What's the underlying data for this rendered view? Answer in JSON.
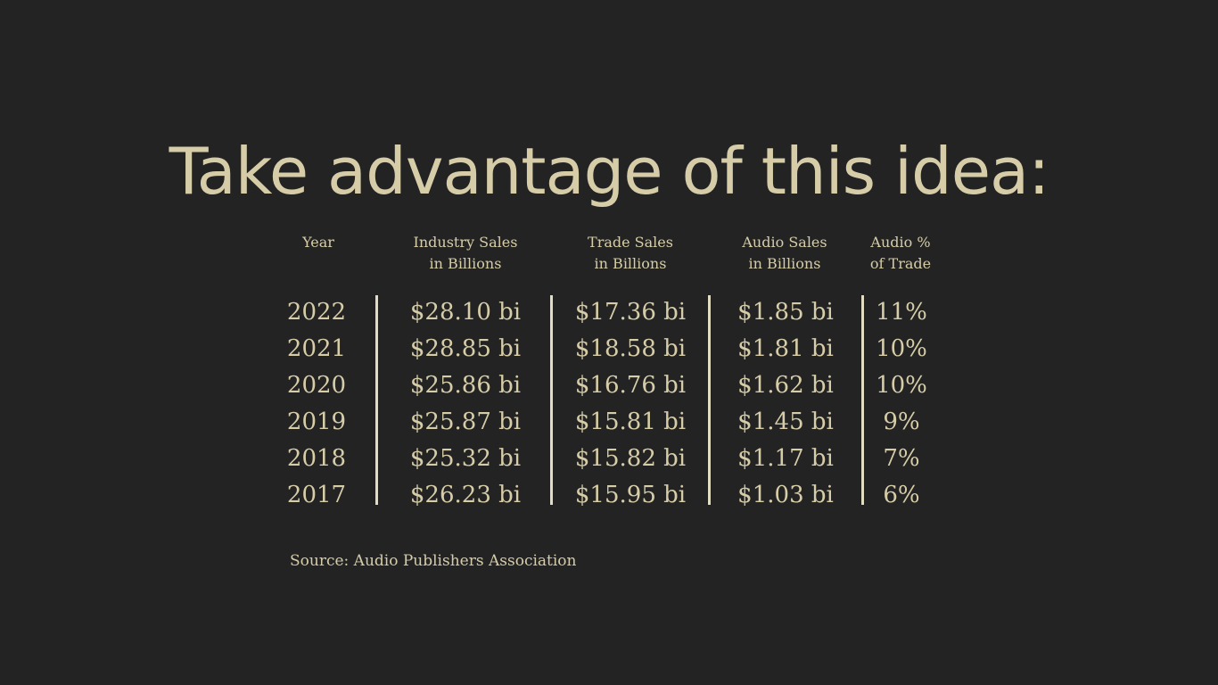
{
  "title": "Take advantage of this idea:",
  "table": {
    "headers": {
      "year": {
        "line1": "Year",
        "line2": ""
      },
      "industry": {
        "line1": "Industry Sales",
        "line2": "in Billions"
      },
      "trade": {
        "line1": "Trade Sales",
        "line2": "in Billions"
      },
      "audio": {
        "line1": "Audio Sales",
        "line2": "in Billions"
      },
      "percent": {
        "line1": "Audio %",
        "line2": "of Trade"
      }
    },
    "year": [
      "2022",
      "2021",
      "2020",
      "2019",
      "2018",
      "2017"
    ],
    "industry": [
      "$28.10 bi",
      "$28.85 bi",
      "$25.86 bi",
      "$25.87 bi",
      "$25.32 bi",
      "$26.23 bi"
    ],
    "trade": [
      "$17.36 bi",
      "$18.58 bi",
      "$16.76 bi",
      "$15.81 bi",
      "$15.82 bi",
      "$15.95 bi"
    ],
    "audio": [
      "$1.85 bi",
      "$1.81 bi",
      "$1.62 bi",
      "$1.45 bi",
      "$1.17 bi",
      "$1.03 bi"
    ],
    "percent": [
      "11%",
      "10%",
      "10%",
      "9%",
      "7%",
      "6%"
    ]
  },
  "source": "Source: Audio Publishers Association",
  "colors": {
    "background": "#232323",
    "text": "#d6cda8",
    "divider": "#e2dcc3"
  }
}
